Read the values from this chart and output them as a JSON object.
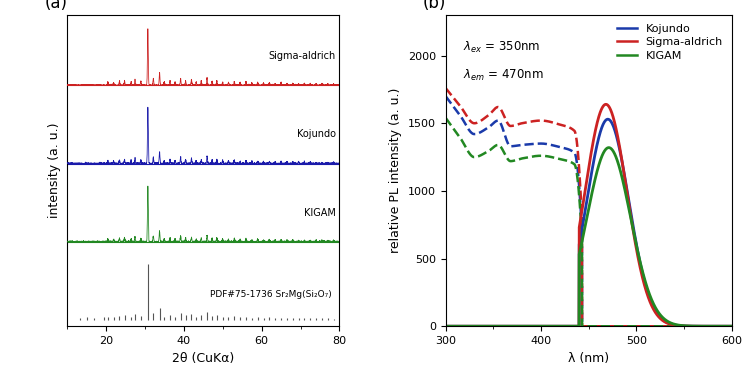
{
  "panel_a": {
    "title": "(a)",
    "xlabel": "2θ (CuKα)",
    "ylabel": "intensity (a. u.)",
    "xlim": [
      10,
      80
    ],
    "colors": [
      "#cc2222",
      "#1a1aaa",
      "#228822",
      "#555555"
    ],
    "labels": [
      "Sigma-aldrich",
      "Kojundo",
      "KIGAM",
      "PDF#75-1736 Sr₂Mg(Si₂O₇)"
    ],
    "offsets": [
      3.0,
      2.0,
      1.0,
      0.0
    ],
    "peak_scale": 0.72,
    "peaks_common_x": [
      20.5,
      22.0,
      23.5,
      24.8,
      26.5,
      27.5,
      29.0,
      30.8,
      32.2,
      33.8,
      35.0,
      36.5,
      37.8,
      39.2,
      40.5,
      42.0,
      43.2,
      44.5,
      46.0,
      47.3,
      48.5,
      50.0,
      51.5,
      53.0,
      54.5,
      56.0,
      57.5,
      59.0,
      60.5,
      62.0,
      63.5,
      65.0,
      66.5,
      68.0,
      69.5,
      71.0,
      72.5,
      74.0,
      75.5,
      77.0,
      78.5
    ],
    "peaks_sigma_h": [
      0.06,
      0.04,
      0.07,
      0.08,
      0.06,
      0.1,
      0.07,
      1.0,
      0.12,
      0.22,
      0.06,
      0.08,
      0.06,
      0.12,
      0.08,
      0.1,
      0.06,
      0.08,
      0.14,
      0.07,
      0.08,
      0.06,
      0.05,
      0.07,
      0.05,
      0.06,
      0.04,
      0.05,
      0.04,
      0.05,
      0.03,
      0.04,
      0.03,
      0.04,
      0.03,
      0.04,
      0.03,
      0.03,
      0.03,
      0.03,
      0.02
    ],
    "peaks_kojundo_h": [
      0.05,
      0.04,
      0.06,
      0.07,
      0.06,
      0.1,
      0.06,
      1.0,
      0.11,
      0.2,
      0.05,
      0.07,
      0.05,
      0.11,
      0.07,
      0.09,
      0.05,
      0.07,
      0.13,
      0.06,
      0.07,
      0.06,
      0.05,
      0.06,
      0.04,
      0.05,
      0.04,
      0.04,
      0.03,
      0.04,
      0.03,
      0.04,
      0.03,
      0.03,
      0.03,
      0.03,
      0.03,
      0.02,
      0.02,
      0.02,
      0.02
    ],
    "peaks_kigam_h": [
      0.05,
      0.04,
      0.06,
      0.07,
      0.05,
      0.09,
      0.06,
      1.0,
      0.1,
      0.19,
      0.05,
      0.07,
      0.05,
      0.1,
      0.07,
      0.08,
      0.05,
      0.07,
      0.12,
      0.06,
      0.07,
      0.05,
      0.04,
      0.06,
      0.04,
      0.05,
      0.03,
      0.04,
      0.03,
      0.04,
      0.03,
      0.03,
      0.03,
      0.03,
      0.02,
      0.03,
      0.02,
      0.02,
      0.02,
      0.02,
      0.02
    ],
    "peaks_pdf_x": [
      13.5,
      15.2,
      17.0,
      19.5,
      20.5,
      22.0,
      23.5,
      24.8,
      26.5,
      27.5,
      29.0,
      30.8,
      32.2,
      33.8,
      35.0,
      36.5,
      37.8,
      39.2,
      40.5,
      42.0,
      43.2,
      44.5,
      46.0,
      47.3,
      48.5,
      50.0,
      51.5,
      53.0,
      54.5,
      56.0,
      57.5,
      59.0,
      60.5,
      62.0,
      63.5,
      65.0,
      66.5,
      68.0,
      69.5,
      71.0,
      72.5,
      74.0,
      75.5,
      77.0,
      78.5
    ],
    "peaks_pdf_h": [
      0.04,
      0.05,
      0.04,
      0.06,
      0.06,
      0.05,
      0.07,
      0.08,
      0.06,
      0.1,
      0.07,
      1.0,
      0.12,
      0.22,
      0.06,
      0.09,
      0.06,
      0.12,
      0.08,
      0.1,
      0.06,
      0.08,
      0.14,
      0.07,
      0.08,
      0.06,
      0.05,
      0.07,
      0.05,
      0.06,
      0.04,
      0.05,
      0.04,
      0.05,
      0.03,
      0.04,
      0.03,
      0.04,
      0.03,
      0.04,
      0.03,
      0.03,
      0.03,
      0.03,
      0.02
    ]
  },
  "panel_b": {
    "title": "(b)",
    "xlabel": "λ (nm)",
    "ylabel": "relative PL intensity (a. u.)",
    "xlim": [
      300,
      600
    ],
    "ylim": [
      0,
      2300
    ],
    "yticks": [
      0,
      500,
      1000,
      1500,
      2000
    ],
    "annotation_ex": "λ$_{ex}$ = 350nm",
    "annotation_em": "λ$_{em}$ = 470nm",
    "colors": {
      "Kojundo": "#1a3aaa",
      "Sigma-aldrich": "#cc2222",
      "KIGAM": "#228822"
    }
  },
  "background_color": "#ffffff"
}
